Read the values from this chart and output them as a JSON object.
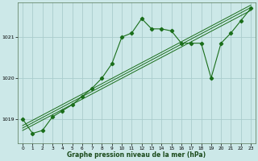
{
  "title": "Graphe pression niveau de la mer (hPa)",
  "xlabel": "Graphe pression niveau de la mer (hPa)",
  "background_color": "#cce8e8",
  "grid_color": "#aacccc",
  "line_color": "#1a6e1a",
  "marker_color": "#1a6e1a",
  "xlim": [
    -0.5,
    23.5
  ],
  "ylim": [
    1018.4,
    1021.85
  ],
  "yticks": [
    1019,
    1020,
    1021
  ],
  "xticks": [
    0,
    1,
    2,
    3,
    4,
    5,
    6,
    7,
    8,
    9,
    10,
    11,
    12,
    13,
    14,
    15,
    16,
    17,
    18,
    19,
    20,
    21,
    22,
    23
  ],
  "series1_x": [
    0,
    1,
    2,
    3,
    4,
    5,
    6,
    7,
    8,
    9,
    10,
    11,
    12,
    13,
    14,
    15,
    16,
    17,
    18,
    19,
    20,
    21,
    22,
    23
  ],
  "series1_y": [
    1019.0,
    1018.65,
    1018.72,
    1019.05,
    1019.2,
    1019.35,
    1019.55,
    1019.75,
    1020.0,
    1020.35,
    1021.0,
    1021.1,
    1021.45,
    1021.2,
    1021.2,
    1021.15,
    1020.85,
    1020.85,
    1020.85,
    1020.0,
    1020.85,
    1021.1,
    1021.4,
    1021.7
  ],
  "trend1_x": [
    0,
    23
  ],
  "trend1_y": [
    1018.72,
    1021.65
  ],
  "trend2_x": [
    0,
    23
  ],
  "trend2_y": [
    1018.78,
    1021.72
  ],
  "trend3_x": [
    0,
    23
  ],
  "trend3_y": [
    1018.84,
    1021.78
  ]
}
